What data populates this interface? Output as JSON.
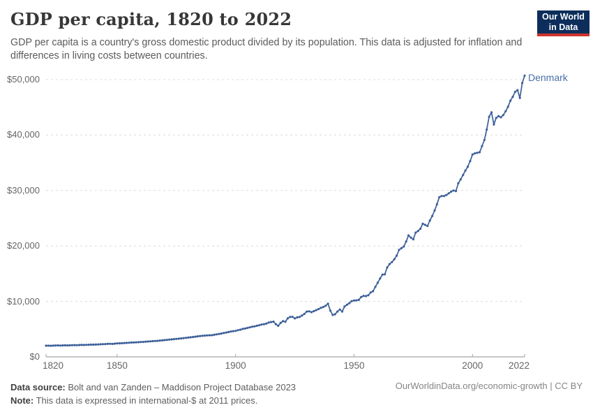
{
  "header": {
    "title": "GDP per capita, 1820 to 2022",
    "subtitle": "GDP per capita is a country's gross domestic product divided by its population. This data is adjusted for inflation and differences in living costs between countries.",
    "logo": {
      "line1": "Our World",
      "line2": "in Data",
      "bg_color": "#0d2e5b",
      "accent_color": "#cf342b"
    }
  },
  "chart_data": {
    "type": "line",
    "title": "GDP per capita, 1820 to 2022",
    "xlabel": "",
    "ylabel": "",
    "xlim": [
      1820,
      2022
    ],
    "ylim": [
      0,
      50000
    ],
    "grid": "horizontal-dashed",
    "legend_position": "line-end-label",
    "x_ticks": [
      1820,
      1850,
      1900,
      1950,
      2000,
      2022
    ],
    "y_ticks": [
      {
        "value": 0,
        "label": "$0"
      },
      {
        "value": 10000,
        "label": "$10,000"
      },
      {
        "value": 20000,
        "label": "$20,000"
      },
      {
        "value": 30000,
        "label": "$30,000"
      },
      {
        "value": 40000,
        "label": "$40,000"
      },
      {
        "value": 50000,
        "label": "$50,000"
      }
    ],
    "series": [
      {
        "name": "Denmark",
        "color": "#3c5f99",
        "label_color": "#4a6fa8",
        "x_start": 1820,
        "x_step": 1,
        "values": [
          2010,
          2020,
          2000,
          2030,
          2050,
          2060,
          2040,
          2060,
          2080,
          2060,
          2080,
          2100,
          2120,
          2100,
          2130,
          2150,
          2140,
          2160,
          2180,
          2200,
          2200,
          2220,
          2240,
          2270,
          2290,
          2310,
          2340,
          2350,
          2330,
          2380,
          2430,
          2440,
          2460,
          2490,
          2520,
          2550,
          2580,
          2600,
          2620,
          2650,
          2680,
          2700,
          2730,
          2770,
          2800,
          2830,
          2860,
          2890,
          2930,
          2970,
          3020,
          3060,
          3110,
          3150,
          3200,
          3240,
          3280,
          3330,
          3380,
          3430,
          3480,
          3530,
          3580,
          3640,
          3700,
          3750,
          3790,
          3830,
          3870,
          3890,
          3910,
          3980,
          4060,
          4130,
          4210,
          4290,
          4380,
          4470,
          4570,
          4630,
          4690,
          4810,
          4900,
          5040,
          5110,
          5210,
          5330,
          5430,
          5510,
          5610,
          5710,
          5830,
          5900,
          5990,
          6190,
          6280,
          6350,
          5900,
          5610,
          6120,
          6440,
          6330,
          6940,
          7210,
          7220,
          6940,
          7120,
          7190,
          7440,
          7730,
          8160,
          8210,
          8060,
          8240,
          8430,
          8620,
          8830,
          8990,
          9210,
          9590,
          8340,
          7560,
          7680,
          8170,
          8540,
          8170,
          9080,
          9390,
          9680,
          10050,
          10170,
          10190,
          10280,
          10790,
          11000,
          10960,
          11110,
          11610,
          11840,
          12620,
          13360,
          14130,
          14830,
          14890,
          16120,
          16740,
          17090,
          17610,
          18250,
          19300,
          19600,
          19900,
          20800,
          21900,
          21500,
          21200,
          22400,
          22700,
          23100,
          24000,
          23800,
          23600,
          24600,
          25400,
          26400,
          27500,
          28800,
          29000,
          29000,
          29200,
          29500,
          29800,
          30000,
          29900,
          31300,
          32000,
          32800,
          33600,
          34300,
          35300,
          36500,
          36700,
          36800,
          36900,
          38000,
          39100,
          41000,
          43300,
          44100,
          41900,
          43100,
          43400,
          43200,
          43600,
          44300,
          45100,
          46200,
          46900,
          47800,
          48100,
          46700,
          49400,
          50700
        ]
      }
    ]
  },
  "footer": {
    "source_label": "Data source:",
    "source_text": " Bolt and van Zanden – Maddison Project Database 2023",
    "note_label": "Note:",
    "note_text": " This data is expressed in international-$ at 2011 prices.",
    "link": "OurWorldinData.org/economic-growth | CC BY"
  }
}
